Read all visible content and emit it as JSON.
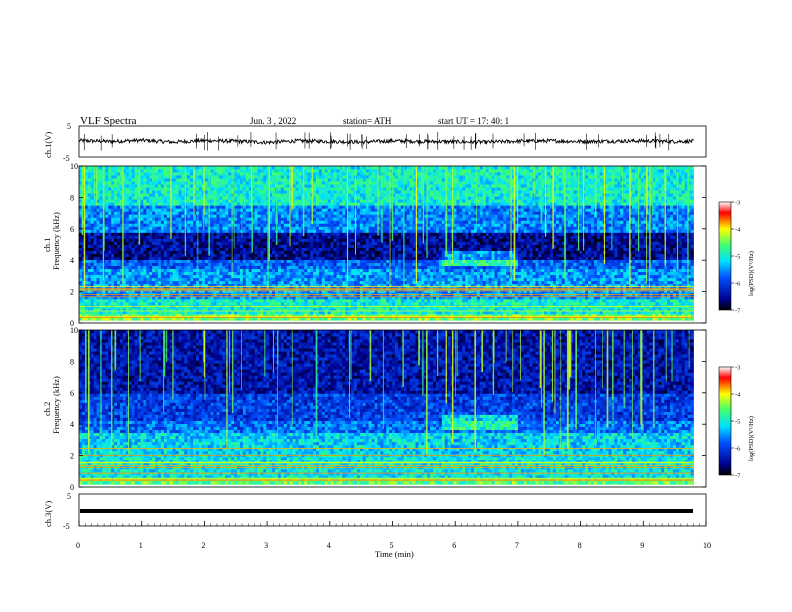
{
  "header": {
    "title": "VLF Spectra",
    "date": "Jun. 3 , 2022",
    "station": "station= ATH",
    "start": "start UT =   17: 40: 1"
  },
  "chart_data": [
    {
      "type": "line",
      "title": "",
      "ylabel": "ch.1(V)",
      "yticks": [
        "5",
        "-5"
      ],
      "ylim": [
        -5,
        5
      ],
      "xlim": [
        0,
        10
      ],
      "approx_value_range": [
        -1.5,
        1.5
      ],
      "note": "noisy waveform, approx amplitude in volts over 0-9.8 min",
      "x": [
        0.0,
        0.5,
        1.0,
        1.5,
        2.0,
        2.5,
        3.0,
        3.5,
        4.0,
        4.5,
        5.0,
        5.5,
        6.0,
        6.5,
        7.0,
        7.5,
        8.0,
        8.5,
        9.0,
        9.5,
        9.8
      ],
      "y": [
        0.3,
        0.0,
        0.4,
        -0.2,
        0.3,
        0.1,
        -0.3,
        0.2,
        0.0,
        -0.2,
        0.2,
        0.0,
        -0.1,
        -0.2,
        0.1,
        0.2,
        0.0,
        0.1,
        0.2,
        0.0,
        0.1
      ]
    },
    {
      "type": "heatmap",
      "title": "",
      "ylabel": "Frequency (kHz)",
      "channel_label": "ch.1",
      "yticks": [
        "0",
        "2",
        "4",
        "6",
        "8",
        "10"
      ],
      "ylim": [
        0,
        10
      ],
      "xlim": [
        0,
        10
      ],
      "colorbar": {
        "label": "log(PSD)(V²/Hz)",
        "ticks": [
          "-3",
          "-4",
          "-5",
          "-6",
          "-7"
        ],
        "range": [
          -7,
          -3
        ]
      },
      "bands": [
        {
          "f": [
            0.0,
            0.5
          ],
          "level": -4.5
        },
        {
          "f": [
            0.5,
            1.5
          ],
          "level": -5.0
        },
        {
          "f": [
            1.5,
            3.5
          ],
          "level": -5.5
        },
        {
          "f": [
            3.5,
            4.0
          ],
          "level": -5.8
        },
        {
          "f": [
            4.0,
            5.8
          ],
          "level": -6.5
        },
        {
          "f": [
            5.8,
            7.5
          ],
          "level": -5.6
        },
        {
          "f": [
            7.5,
            10.0
          ],
          "level": -5.0
        }
      ]
    },
    {
      "type": "heatmap",
      "title": "",
      "ylabel": "Frequency (kHz)",
      "channel_label": "ch.2",
      "yticks": [
        "0",
        "2",
        "4",
        "6",
        "8",
        "10"
      ],
      "ylim": [
        0,
        10
      ],
      "xlim": [
        0,
        10
      ],
      "colorbar": {
        "label": "log(PSD)(V²/Hz)",
        "ticks": [
          "-3",
          "-4",
          "-5",
          "-6",
          "-7"
        ],
        "range": [
          -7,
          -3
        ]
      },
      "bands": [
        {
          "f": [
            0.0,
            0.5
          ],
          "level": -4.6
        },
        {
          "f": [
            0.5,
            2.2
          ],
          "level": -5.1
        },
        {
          "f": [
            2.2,
            3.5
          ],
          "level": -5.2
        },
        {
          "f": [
            3.5,
            4.3
          ],
          "level": -5.7
        },
        {
          "f": [
            4.3,
            6.0
          ],
          "level": -6.0
        },
        {
          "f": [
            6.0,
            10.0
          ],
          "level": -6.4
        }
      ]
    },
    {
      "type": "line",
      "title": "",
      "ylabel": "ch.3(V)",
      "yticks": [
        "5",
        "-5"
      ],
      "ylim": [
        -5,
        5
      ],
      "xlim": [
        0,
        10
      ],
      "xlabel": "Time (min)",
      "xticks": [
        "0",
        "1",
        "2",
        "3",
        "4",
        "5",
        "6",
        "7",
        "8",
        "9",
        "10"
      ],
      "x": [
        0.0,
        9.8
      ],
      "y": [
        0.0,
        0.0
      ]
    }
  ]
}
